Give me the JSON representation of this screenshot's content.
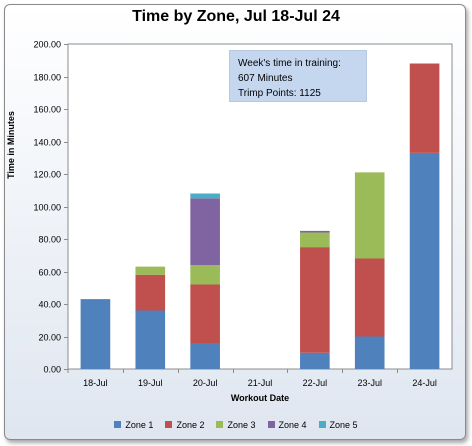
{
  "chart_data": {
    "type": "bar",
    "stacked": true,
    "title": "Time by Zone, Jul 18-Jul 24",
    "xlabel": "Workout Date",
    "ylabel": "Time in Minutes",
    "ylim": [
      0,
      200
    ],
    "yticks": [
      "0.00",
      "20.00",
      "40.00",
      "60.00",
      "80.00",
      "100.00",
      "120.00",
      "140.00",
      "160.00",
      "180.00",
      "200.00"
    ],
    "ytick_values": [
      0,
      20,
      40,
      60,
      80,
      100,
      120,
      140,
      160,
      180,
      200
    ],
    "categories": [
      "18-Jul",
      "19-Jul",
      "20-Jul",
      "21-Jul",
      "22-Jul",
      "23-Jul",
      "24-Jul"
    ],
    "series": [
      {
        "name": "Zone 1",
        "color": "#4f81bd",
        "values": [
          43,
          36,
          16,
          0,
          10,
          20,
          133
        ]
      },
      {
        "name": "Zone 2",
        "color": "#c0504d",
        "values": [
          0,
          22,
          36,
          0,
          65,
          48,
          55
        ]
      },
      {
        "name": "Zone 3",
        "color": "#9bbb59",
        "values": [
          0,
          5,
          12,
          0,
          9,
          53,
          0
        ]
      },
      {
        "name": "Zone 4",
        "color": "#8064a2",
        "values": [
          0,
          0,
          41,
          0,
          1,
          0,
          0
        ]
      },
      {
        "name": "Zone 5",
        "color": "#4bacc6",
        "values": [
          0,
          0,
          3,
          0,
          0,
          0,
          0
        ]
      }
    ],
    "grid": false,
    "legend_position": "bottom",
    "annotation": {
      "line1": "Week's time in training:",
      "line2": "607 Minutes",
      "line3": "Trimp Points:  1125"
    }
  }
}
